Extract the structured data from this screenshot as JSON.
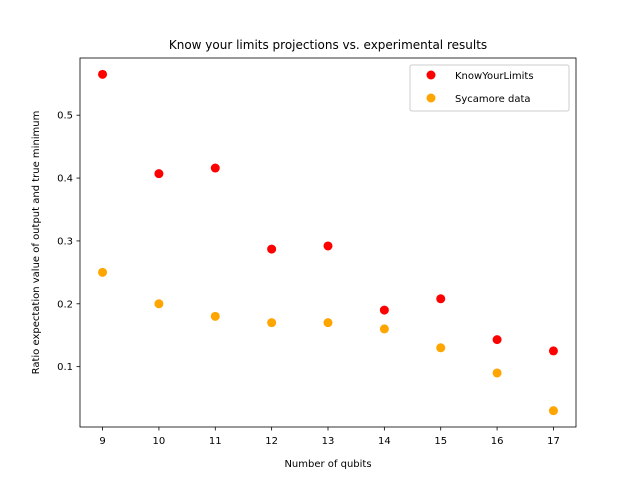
{
  "chart_data": {
    "type": "scatter",
    "title": "Know your limits projections vs. experimental results",
    "xlabel": "Number of qubits",
    "ylabel": "Ratio expectation value of output and true minimum",
    "xlim": [
      8.6,
      17.4
    ],
    "ylim": [
      0.004,
      0.591
    ],
    "xticks": [
      9,
      10,
      11,
      12,
      13,
      14,
      15,
      16,
      17
    ],
    "yticks": [
      0.1,
      0.2,
      0.3,
      0.4,
      0.5
    ],
    "grid": false,
    "legend_position": "upper right",
    "series": [
      {
        "name": "KnowYourLimits",
        "color": "#ff0000",
        "x": [
          9,
          10,
          11,
          12,
          13,
          14,
          15,
          16,
          17
        ],
        "y": [
          0.565,
          0.407,
          0.416,
          0.287,
          0.292,
          0.19,
          0.208,
          0.143,
          0.125
        ]
      },
      {
        "name": "Sycamore data",
        "color": "#ffa500",
        "x": [
          9,
          10,
          11,
          12,
          13,
          14,
          15,
          16,
          17
        ],
        "y": [
          0.25,
          0.2,
          0.18,
          0.17,
          0.17,
          0.16,
          0.13,
          0.09,
          0.03
        ]
      }
    ]
  }
}
